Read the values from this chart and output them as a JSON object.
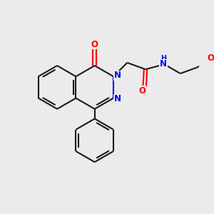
{
  "bg_color": "#ebebeb",
  "bond_color": "#1a1a1a",
  "N_color": "#0000ff",
  "O_color": "#ff0000",
  "NH_color": "#0000ff",
  "line_width": 1.5,
  "fig_w": 3.0,
  "fig_h": 3.0,
  "dpi": 100,
  "xlim": [
    0,
    10
  ],
  "ylim": [
    0,
    10
  ]
}
